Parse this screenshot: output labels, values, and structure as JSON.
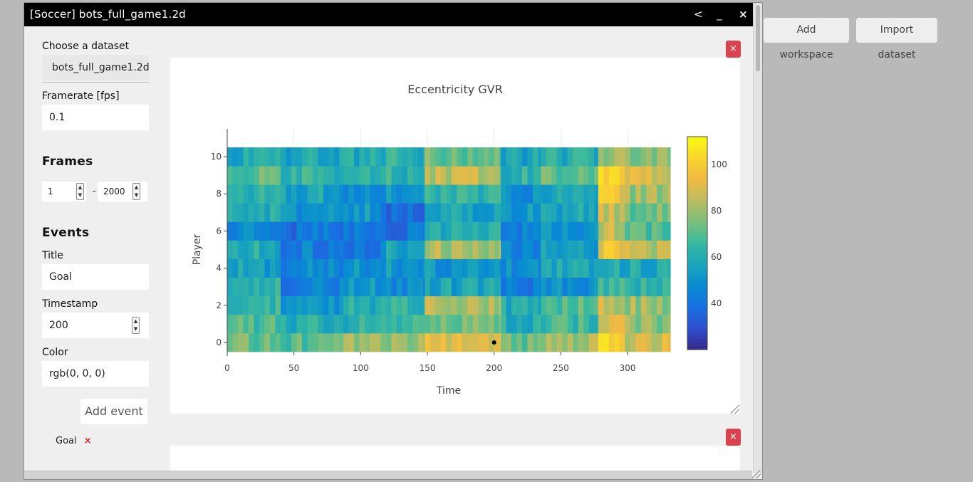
{
  "window": {
    "title": "[Soccer] bots_full_game1.2d",
    "controls": {
      "back": "<",
      "minimize": "_",
      "close": "×"
    }
  },
  "topbar": {
    "add_workspace": "Add workspace",
    "import_dataset": "Import dataset"
  },
  "sidebar": {
    "dataset_label": "Choose a dataset",
    "dataset_value": "bots_full_game1.2d",
    "framerate_label": "Framerate [fps]",
    "framerate_value": "0.1",
    "frames_heading": "Frames",
    "frames_from": "1",
    "frames_separator": "-",
    "frames_to": "2000",
    "events_heading": "Events",
    "title_label": "Title",
    "title_value": "Goal",
    "timestamp_label": "Timestamp",
    "timestamp_value": "200",
    "color_label": "Color",
    "color_value": "rgb(0, 0, 0)",
    "add_event_button": "Add event",
    "events": [
      {
        "title": "Goal",
        "remove": "×"
      }
    ]
  },
  "panel_close": "×",
  "chart_data": {
    "type": "heatmap",
    "title": "Eccentricity GVR",
    "xlabel": "Time",
    "ylabel": "Player",
    "x_range": [
      0,
      332
    ],
    "y_range": [
      -0.5,
      10.5
    ],
    "x_ticks": [
      "0",
      "50",
      "100",
      "150",
      "200",
      "250",
      "300"
    ],
    "y_ticks": [
      "0",
      "2",
      "4",
      "6",
      "8",
      "10"
    ],
    "colorscale": "viridis",
    "colorbar_range": [
      20,
      112
    ],
    "colorbar_ticks": [
      "40",
      "60",
      "80",
      "100"
    ],
    "players": [
      0,
      1,
      2,
      3,
      4,
      5,
      6,
      7,
      8,
      9,
      10
    ],
    "event_marker": {
      "x": 200,
      "y": 0,
      "label": "Goal",
      "color": "#000000"
    },
    "segments": [
      {
        "x0": 0,
        "x1": 40,
        "mean": [
          72,
          68,
          66,
          62,
          55,
          60,
          48,
          58,
          62,
          70,
          58
        ]
      },
      {
        "x0": 40,
        "x1": 87,
        "mean": [
          70,
          60,
          52,
          44,
          46,
          44,
          40,
          50,
          56,
          64,
          58
        ]
      },
      {
        "x0": 87,
        "x1": 115,
        "mean": [
          78,
          62,
          60,
          52,
          50,
          42,
          42,
          52,
          48,
          60,
          58
        ]
      },
      {
        "x0": 115,
        "x1": 148,
        "mean": [
          80,
          66,
          62,
          48,
          52,
          56,
          40,
          40,
          52,
          62,
          62
        ]
      },
      {
        "x0": 148,
        "x1": 205,
        "mean": [
          92,
          76,
          82,
          56,
          52,
          82,
          62,
          56,
          62,
          84,
          74
        ]
      },
      {
        "x0": 205,
        "x1": 235,
        "mean": [
          74,
          60,
          58,
          42,
          50,
          46,
          44,
          52,
          48,
          62,
          56
        ]
      },
      {
        "x0": 235,
        "x1": 278,
        "mean": [
          80,
          66,
          70,
          50,
          56,
          56,
          52,
          58,
          58,
          72,
          60
        ]
      },
      {
        "x0": 278,
        "x1": 298,
        "mean": [
          102,
          86,
          86,
          64,
          58,
          94,
          86,
          86,
          96,
          100,
          82
        ]
      },
      {
        "x0": 298,
        "x1": 332,
        "mean": [
          88,
          78,
          80,
          62,
          58,
          84,
          70,
          74,
          80,
          88,
          76
        ]
      }
    ]
  }
}
